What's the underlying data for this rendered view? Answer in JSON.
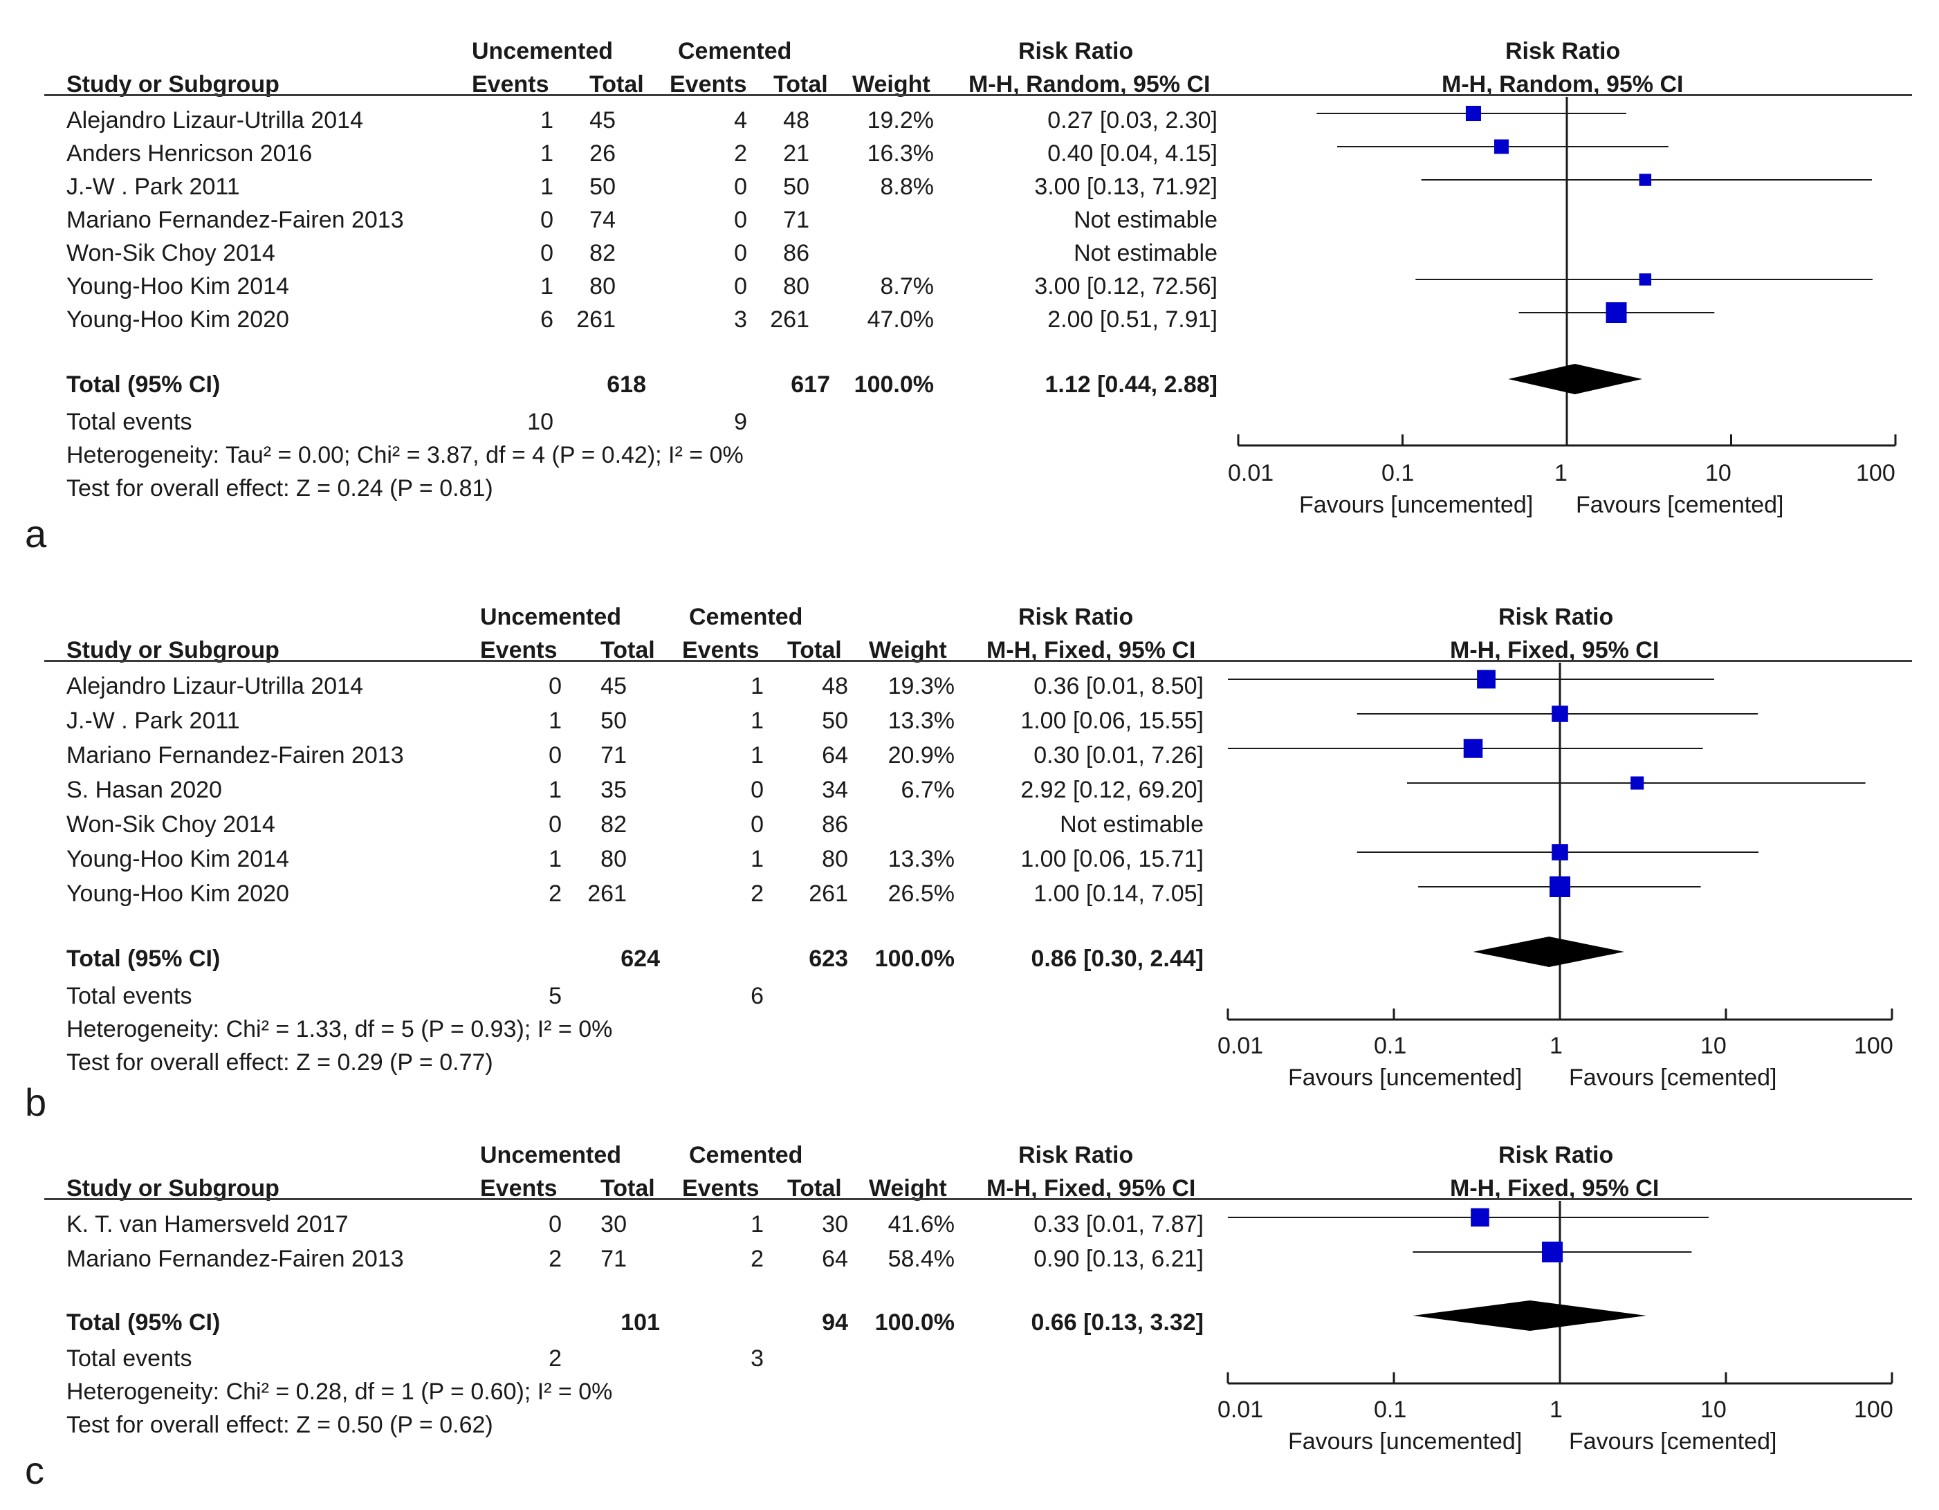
{
  "panels": [
    {
      "letter": "a",
      "headers": {
        "group1": "Uncemented",
        "group2": "Cemented",
        "col_study": "Study or Subgroup",
        "events1": "Events",
        "total1": "Total",
        "events2": "Events",
        "total2": "Total",
        "weight": "Weight",
        "rr_title": "Risk Ratio",
        "rr_method": "M-H, Random, 95% CI",
        "plot_title": "Risk Ratio",
        "plot_method": "M-H, Random, 95% CI"
      },
      "rows": [
        {
          "study": "Alejandro Lizaur-Utrilla 2014",
          "e1": "1",
          "t1": "45",
          "e2": "4",
          "t2": "48",
          "weight": "19.2%",
          "rr": "0.27 [0.03, 2.30]"
        },
        {
          "study": "Anders Henricson 2016",
          "e1": "1",
          "t1": "26",
          "e2": "2",
          "t2": "21",
          "weight": "16.3%",
          "rr": "0.40 [0.04, 4.15]"
        },
        {
          "study": "J.-W . Park 2011",
          "e1": "1",
          "t1": "50",
          "e2": "0",
          "t2": "50",
          "weight": "8.8%",
          "rr": "3.00 [0.13, 71.92]"
        },
        {
          "study": "Mariano Fernandez-Fairen 2013",
          "e1": "0",
          "t1": "74",
          "e2": "0",
          "t2": "71",
          "weight": "",
          "rr": "Not estimable"
        },
        {
          "study": "Won-Sik Choy 2014",
          "e1": "0",
          "t1": "82",
          "e2": "0",
          "t2": "86",
          "weight": "",
          "rr": "Not estimable"
        },
        {
          "study": "Young-Hoo Kim 2014",
          "e1": "1",
          "t1": "80",
          "e2": "0",
          "t2": "80",
          "weight": "8.7%",
          "rr": "3.00 [0.12, 72.56]"
        },
        {
          "study": "Young-Hoo Kim 2020",
          "e1": "6",
          "t1": "261",
          "e2": "3",
          "t2": "261",
          "weight": "47.0%",
          "rr": "2.00 [0.51, 7.91]"
        }
      ],
      "total": {
        "label": "Total (95% CI)",
        "t1": "618",
        "t2": "617",
        "weight": "100.0%",
        "rr": "1.12 [0.44, 2.88]"
      },
      "events": {
        "label": "Total events",
        "e1": "10",
        "e2": "9"
      },
      "heterogeneity": "Heterogeneity: Tau² = 0.00; Chi² = 3.87, df = 4 (P = 0.42); I² = 0%",
      "overall": "Test for overall effect: Z = 0.24 (P = 0.81)",
      "axis": {
        "ticks": [
          "0.01",
          "0.1",
          "1",
          "10",
          "100"
        ],
        "fav_left": "Favours [uncemented]",
        "fav_right": "Favours [cemented]"
      }
    },
    {
      "letter": "b",
      "headers": {
        "group1": "Uncemented",
        "group2": "Cemented",
        "col_study": "Study or Subgroup",
        "events1": "Events",
        "total1": "Total",
        "events2": "Events",
        "total2": "Total",
        "weight": "Weight",
        "rr_title": "Risk Ratio",
        "rr_method": "M-H, Fixed, 95% CI",
        "plot_title": "Risk Ratio",
        "plot_method": "M-H, Fixed, 95% CI"
      },
      "rows": [
        {
          "study": "Alejandro Lizaur-Utrilla 2014",
          "e1": "0",
          "t1": "45",
          "e2": "1",
          "t2": "48",
          "weight": "19.3%",
          "rr": "0.36 [0.01, 8.50]"
        },
        {
          "study": "J.-W . Park 2011",
          "e1": "1",
          "t1": "50",
          "e2": "1",
          "t2": "50",
          "weight": "13.3%",
          "rr": "1.00 [0.06, 15.55]"
        },
        {
          "study": "Mariano Fernandez-Fairen 2013",
          "e1": "0",
          "t1": "71",
          "e2": "1",
          "t2": "64",
          "weight": "20.9%",
          "rr": "0.30 [0.01, 7.26]"
        },
        {
          "study": "S. Hasan 2020",
          "e1": "1",
          "t1": "35",
          "e2": "0",
          "t2": "34",
          "weight": "6.7%",
          "rr": "2.92 [0.12, 69.20]"
        },
        {
          "study": "Won-Sik Choy 2014",
          "e1": "0",
          "t1": "82",
          "e2": "0",
          "t2": "86",
          "weight": "",
          "rr": "Not estimable"
        },
        {
          "study": "Young-Hoo Kim 2014",
          "e1": "1",
          "t1": "80",
          "e2": "1",
          "t2": "80",
          "weight": "13.3%",
          "rr": "1.00 [0.06, 15.71]"
        },
        {
          "study": "Young-Hoo Kim 2020",
          "e1": "2",
          "t1": "261",
          "e2": "2",
          "t2": "261",
          "weight": "26.5%",
          "rr": "1.00 [0.14, 7.05]"
        }
      ],
      "total": {
        "label": "Total (95% CI)",
        "t1": "624",
        "t2": "623",
        "weight": "100.0%",
        "rr": "0.86 [0.30, 2.44]"
      },
      "events": {
        "label": "Total events",
        "e1": "5",
        "e2": "6"
      },
      "heterogeneity": "Heterogeneity: Chi² = 1.33, df = 5 (P = 0.93); I² = 0%",
      "overall": "Test for overall effect: Z = 0.29 (P = 0.77)",
      "axis": {
        "ticks": [
          "0.01",
          "0.1",
          "1",
          "10",
          "100"
        ],
        "fav_left": "Favours [uncemented]",
        "fav_right": "Favours [cemented]"
      }
    },
    {
      "letter": "c",
      "headers": {
        "group1": "Uncemented",
        "group2": "Cemented",
        "col_study": "Study or Subgroup",
        "events1": "Events",
        "total1": "Total",
        "events2": "Events",
        "total2": "Total",
        "weight": "Weight",
        "rr_title": "Risk Ratio",
        "rr_method": "M-H, Fixed, 95% CI",
        "plot_title": "Risk Ratio",
        "plot_method": "M-H, Fixed, 95% CI"
      },
      "rows": [
        {
          "study": "K. T. van Hamersveld 2017",
          "e1": "0",
          "t1": "30",
          "e2": "1",
          "t2": "30",
          "weight": "41.6%",
          "rr": "0.33 [0.01, 7.87]"
        },
        {
          "study": "Mariano Fernandez-Fairen 2013",
          "e1": "2",
          "t1": "71",
          "e2": "2",
          "t2": "64",
          "weight": "58.4%",
          "rr": "0.90 [0.13, 6.21]"
        }
      ],
      "total": {
        "label": "Total (95% CI)",
        "t1": "101",
        "t2": "94",
        "weight": "100.0%",
        "rr": "0.66 [0.13, 3.32]"
      },
      "events": {
        "label": "Total events",
        "e1": "2",
        "e2": "3"
      },
      "heterogeneity": "Heterogeneity: Chi² = 0.28, df = 1 (P = 0.60); I² = 0%",
      "overall": "Test for overall effect: Z = 0.50 (P = 0.62)",
      "axis": {
        "ticks": [
          "0.01",
          "0.1",
          "1",
          "10",
          "100"
        ],
        "fav_left": "Favours [uncemented]",
        "fav_right": "Favours [cemented]"
      }
    }
  ],
  "chart_data": [
    {
      "type": "forest",
      "panel": "a",
      "scale": "log",
      "xlim": [
        0.01,
        100
      ],
      "null_value": 1,
      "marker_color": "#0000cc",
      "studies": [
        {
          "name": "Alejandro Lizaur-Utrilla 2014",
          "rr": 0.27,
          "lo": 0.03,
          "hi": 2.3,
          "weight": 19.2
        },
        {
          "name": "Anders Henricson 2016",
          "rr": 0.4,
          "lo": 0.04,
          "hi": 4.15,
          "weight": 16.3
        },
        {
          "name": "J.-W . Park 2011",
          "rr": 3.0,
          "lo": 0.13,
          "hi": 71.92,
          "weight": 8.8
        },
        {
          "name": "Mariano Fernandez-Fairen 2013",
          "rr": null,
          "lo": null,
          "hi": null,
          "weight": null
        },
        {
          "name": "Won-Sik Choy 2014",
          "rr": null,
          "lo": null,
          "hi": null,
          "weight": null
        },
        {
          "name": "Young-Hoo Kim 2014",
          "rr": 3.0,
          "lo": 0.12,
          "hi": 72.56,
          "weight": 8.7
        },
        {
          "name": "Young-Hoo Kim 2020",
          "rr": 2.0,
          "lo": 0.51,
          "hi": 7.91,
          "weight": 47.0
        }
      ],
      "pooled": {
        "rr": 1.12,
        "lo": 0.44,
        "hi": 2.88
      }
    },
    {
      "type": "forest",
      "panel": "b",
      "scale": "log",
      "xlim": [
        0.01,
        100
      ],
      "null_value": 1,
      "marker_color": "#0000cc",
      "studies": [
        {
          "name": "Alejandro Lizaur-Utrilla 2014",
          "rr": 0.36,
          "lo": 0.01,
          "hi": 8.5,
          "weight": 19.3
        },
        {
          "name": "J.-W . Park 2011",
          "rr": 1.0,
          "lo": 0.06,
          "hi": 15.55,
          "weight": 13.3
        },
        {
          "name": "Mariano Fernandez-Fairen 2013",
          "rr": 0.3,
          "lo": 0.01,
          "hi": 7.26,
          "weight": 20.9
        },
        {
          "name": "S. Hasan 2020",
          "rr": 2.92,
          "lo": 0.12,
          "hi": 69.2,
          "weight": 6.7
        },
        {
          "name": "Won-Sik Choy 2014",
          "rr": null,
          "lo": null,
          "hi": null,
          "weight": null
        },
        {
          "name": "Young-Hoo Kim 2014",
          "rr": 1.0,
          "lo": 0.06,
          "hi": 15.71,
          "weight": 13.3
        },
        {
          "name": "Young-Hoo Kim 2020",
          "rr": 1.0,
          "lo": 0.14,
          "hi": 7.05,
          "weight": 26.5
        }
      ],
      "pooled": {
        "rr": 0.86,
        "lo": 0.3,
        "hi": 2.44
      }
    },
    {
      "type": "forest",
      "panel": "c",
      "scale": "log",
      "xlim": [
        0.01,
        100
      ],
      "null_value": 1,
      "marker_color": "#0000cc",
      "studies": [
        {
          "name": "K. T. van Hamersveld 2017",
          "rr": 0.33,
          "lo": 0.01,
          "hi": 7.87,
          "weight": 41.6
        },
        {
          "name": "Mariano Fernandez-Fairen 2013",
          "rr": 0.9,
          "lo": 0.13,
          "hi": 6.21,
          "weight": 58.4
        }
      ],
      "pooled": {
        "rr": 0.66,
        "lo": 0.13,
        "hi": 3.32
      }
    }
  ]
}
